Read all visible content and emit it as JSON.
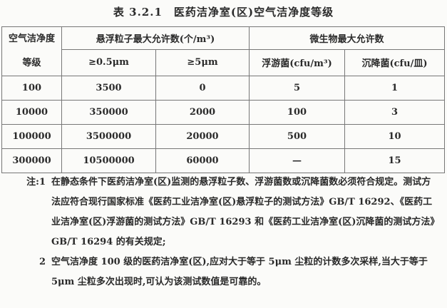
{
  "title": "表 3.2.1　医药洁净室(区)空气洁净度等级",
  "table": {
    "header": {
      "grade_line1": "空气洁净度",
      "grade_line2": "等级",
      "particles": "悬浮粒子最大允许数(个/m³)",
      "microbes": "微生物最大允许数",
      "p05": "≥0.5μm",
      "p5": "≥5μm",
      "floating": "浮游菌(cfu/m³)",
      "settling": "沉降菌(cfu/皿)"
    },
    "rows": [
      [
        "100",
        "3500",
        "0",
        "5",
        "1"
      ],
      [
        "10000",
        "350000",
        "2000",
        "100",
        "3"
      ],
      [
        "100000",
        "3500000",
        "20000",
        "500",
        "10"
      ],
      [
        "300000",
        "10500000",
        "60000",
        "—",
        "15"
      ]
    ]
  },
  "notes": [
    {
      "num": "注:1",
      "text": "在静态条件下医药洁净室(区)监测的悬浮粒子数、浮游菌数或沉降菌数必须符合规定。测试方法应符合现行国家标准《医药工业洁净室(区)悬浮粒子的测试方法》GB/T 16292、《医药工业洁净室(区)浮游菌的测试方法》GB/T 16293 和《医药工业洁净室(区)沉降菌的测试方法》GB/T 16294 的有关规定;"
    },
    {
      "num": "2",
      "text": "空气洁净度 100 级的医药洁净室(区),应对大于等于 5μm 尘粒的计数多次采样,当大于等于 5μm 尘粒多次出现时,可认为该测试数值是可靠的。"
    }
  ]
}
